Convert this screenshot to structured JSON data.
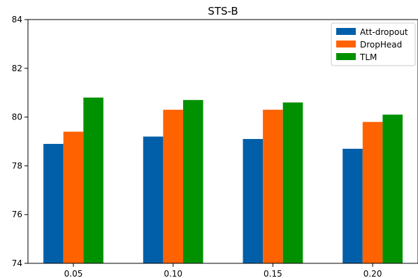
{
  "chart_data": {
    "type": "bar",
    "title": "STS-B",
    "xlabel": "",
    "ylabel": "",
    "categories": [
      "0.05",
      "0.10",
      "0.15",
      "0.20"
    ],
    "series": [
      {
        "name": "Att-dropout",
        "color": "#005FA8",
        "values": [
          78.9,
          79.2,
          79.1,
          78.7
        ]
      },
      {
        "name": "DropHead",
        "color": "#FF6200",
        "values": [
          79.4,
          80.3,
          80.3,
          79.8
        ]
      },
      {
        "name": "TLM",
        "color": "#009100",
        "values": [
          80.8,
          80.7,
          80.6,
          80.1
        ]
      }
    ],
    "ylim": [
      74,
      84
    ],
    "yticks": [
      "74",
      "76",
      "78",
      "80",
      "82",
      "84"
    ],
    "grid": false,
    "legend": "top-right"
  }
}
